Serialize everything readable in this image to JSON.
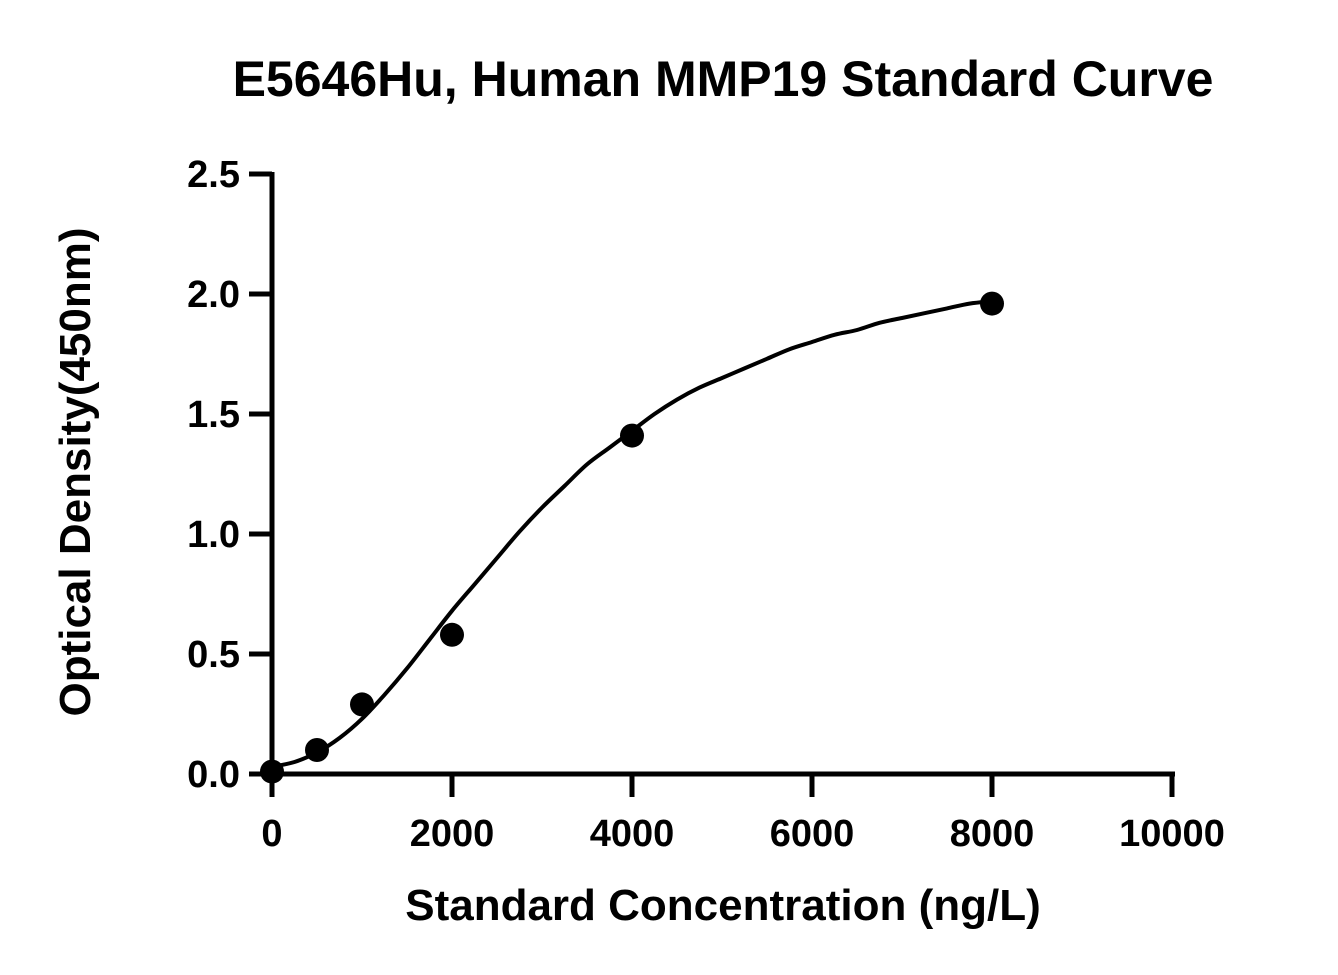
{
  "chart_data": {
    "type": "scatter",
    "title": "E5646Hu, Human MMP19 Standard Curve",
    "xlabel": "Standard Concentration (ng/L)",
    "ylabel": "Optical Density(450nm)",
    "xlim": [
      0,
      10000
    ],
    "ylim": [
      0,
      2.5
    ],
    "x_ticks": [
      0,
      2000,
      4000,
      6000,
      8000,
      10000
    ],
    "x_tick_labels": [
      "0",
      "2000",
      "4000",
      "6000",
      "8000",
      "10000"
    ],
    "y_ticks": [
      0,
      0.5,
      1.0,
      1.5,
      2.0,
      2.5
    ],
    "y_tick_labels": [
      "0.0",
      "0.5",
      "1.0",
      "1.5",
      "2.0",
      "2.5"
    ],
    "grid": false,
    "series": [
      {
        "x": [
          0,
          500,
          1000,
          2000,
          4000,
          8000
        ],
        "y": [
          0.01,
          0.1,
          0.29,
          0.58,
          1.41,
          1.96
        ],
        "marker": "circle",
        "color": "#000000"
      }
    ],
    "fit_curve": {
      "x": [
        0,
        250,
        500,
        750,
        1000,
        1250,
        1500,
        1750,
        2000,
        2250,
        2500,
        2750,
        3000,
        3250,
        3500,
        3750,
        4000,
        4250,
        4500,
        4750,
        5000,
        5250,
        5500,
        5750,
        6000,
        6250,
        6500,
        6750,
        7000,
        7250,
        7500,
        7750,
        8000
      ],
      "y": [
        0.03,
        0.05,
        0.09,
        0.15,
        0.23,
        0.33,
        0.44,
        0.56,
        0.68,
        0.79,
        0.9,
        1.01,
        1.11,
        1.2,
        1.29,
        1.36,
        1.43,
        1.5,
        1.56,
        1.61,
        1.65,
        1.69,
        1.73,
        1.77,
        1.8,
        1.83,
        1.85,
        1.88,
        1.9,
        1.92,
        1.94,
        1.96,
        1.97
      ],
      "color": "#000000"
    }
  }
}
